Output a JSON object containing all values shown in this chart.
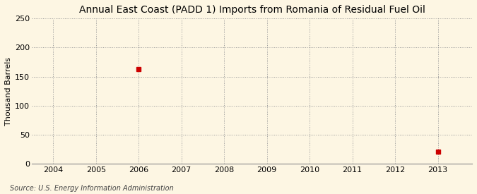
{
  "title": "Annual East Coast (PADD 1) Imports from Romania of Residual Fuel Oil",
  "ylabel": "Thousand Barrels",
  "source": "Source: U.S. Energy Information Administration",
  "xlim": [
    2003.5,
    2013.8
  ],
  "ylim": [
    0,
    250
  ],
  "yticks": [
    0,
    50,
    100,
    150,
    200,
    250
  ],
  "xticks": [
    2004,
    2005,
    2006,
    2007,
    2008,
    2009,
    2010,
    2011,
    2012,
    2013
  ],
  "data_x": [
    2006,
    2013
  ],
  "data_y": [
    163,
    20
  ],
  "marker_color": "#cc0000",
  "marker_style": "s",
  "marker_size": 4,
  "background_color": "#fdf6e3",
  "grid_color": "#999999",
  "grid_linestyle": ":",
  "title_fontsize": 10,
  "ylabel_fontsize": 8,
  "tick_fontsize": 8,
  "source_fontsize": 7
}
